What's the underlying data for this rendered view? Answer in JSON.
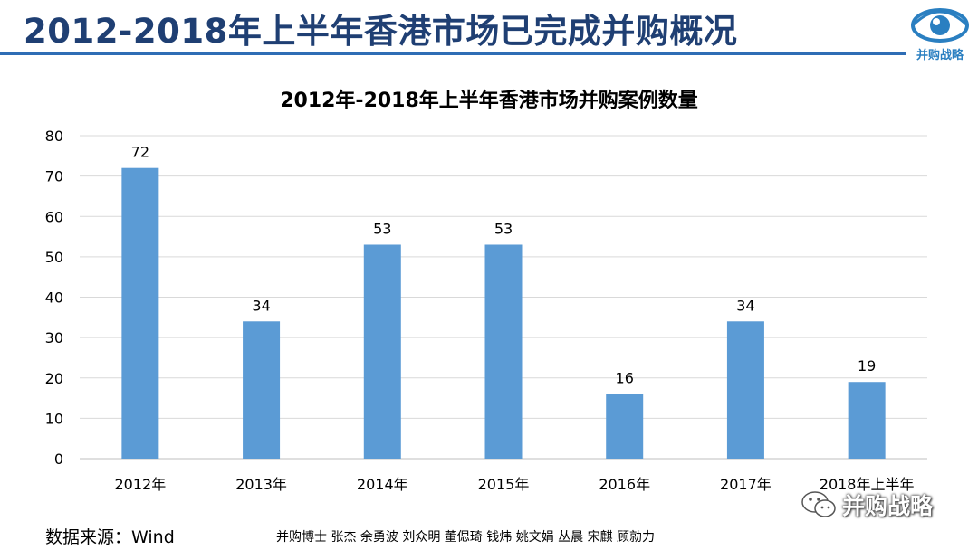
{
  "header": {
    "title": "2012-2018年上半年香港市场已完成并购概况",
    "logo_text": "并购战略"
  },
  "chart_data": {
    "type": "bar",
    "title": "2012年-2018年上半年香港市场并购案例数量",
    "categories": [
      "2012年",
      "2013年",
      "2014年",
      "2015年",
      "2016年",
      "2017年",
      "2018年上半年"
    ],
    "values": [
      72,
      34,
      53,
      53,
      16,
      34,
      19
    ],
    "yticks": [
      0,
      10,
      20,
      30,
      40,
      50,
      60,
      70,
      80
    ],
    "ylim": [
      0,
      80
    ],
    "xlabel": "",
    "ylabel": "",
    "grid": true,
    "data_labels": true,
    "bar_color": "#5b9bd5"
  },
  "footer": {
    "source": "数据来源：Wind",
    "credits": "并购博士 张杰 余勇波 刘众明 董偲琦 钱炜 姚文娟 丛晨 宋麒 顾勍力"
  },
  "watermark": {
    "text": "并购战略",
    "icon": "wechat-icon"
  },
  "colors": {
    "title": "#1f3f73",
    "accent": "#2e6db5",
    "bar": "#5b9bd5",
    "grid": "#d9d9d9"
  }
}
